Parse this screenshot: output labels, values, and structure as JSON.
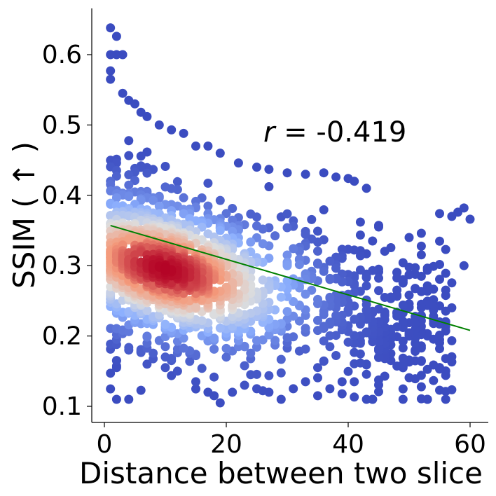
{
  "chart_data": {
    "type": "scatter",
    "xlabel": "Distance between two slice",
    "ylabel": "SSIM ( ↑ )",
    "annotation": {
      "symbol": "r",
      "text": " = -0.419",
      "r_value": -0.419
    },
    "xlim": [
      -2,
      63
    ],
    "ylim": [
      0.08,
      0.67
    ],
    "x_ticks": [
      0,
      20,
      40,
      60
    ],
    "x_tick_labels": [
      "0",
      "20",
      "40",
      "60"
    ],
    "y_ticks": [
      0.1,
      0.2,
      0.3,
      0.4,
      0.5,
      0.6
    ],
    "y_tick_labels": [
      "0.1",
      "0.2",
      "0.3",
      "0.4",
      "0.5",
      "0.6"
    ],
    "grid": false,
    "colormap": "coolwarm (point density)",
    "colors": {
      "low_density": "#3b4cc0",
      "mid_density": "#dddddd",
      "high_density": "#b40426",
      "fit_line": "#008000"
    },
    "fit_line": {
      "x": [
        1,
        60
      ],
      "y": [
        0.357,
        0.208
      ]
    },
    "cloud_summary": {
      "n_points_approx": 1500,
      "density_peak": {
        "x": 10,
        "y": 0.295
      },
      "sparse_outer_points": [
        [
          1,
          0.638
        ],
        [
          2,
          0.626
        ],
        [
          1,
          0.6
        ],
        [
          2,
          0.6
        ],
        [
          3,
          0.6
        ],
        [
          1,
          0.577
        ],
        [
          1,
          0.565
        ],
        [
          3,
          0.545
        ],
        [
          4,
          0.535
        ],
        [
          5,
          0.53
        ],
        [
          6,
          0.518
        ],
        [
          7,
          0.512
        ],
        [
          9,
          0.5
        ],
        [
          11,
          0.493
        ],
        [
          13,
          0.488
        ],
        [
          15,
          0.47
        ],
        [
          17,
          0.47
        ],
        [
          19,
          0.46
        ],
        [
          22,
          0.446
        ],
        [
          25,
          0.44
        ],
        [
          27,
          0.437
        ],
        [
          30,
          0.432
        ],
        [
          33,
          0.43
        ],
        [
          36,
          0.432
        ],
        [
          38,
          0.426
        ],
        [
          40,
          0.424
        ],
        [
          41,
          0.42
        ],
        [
          43,
          0.41
        ],
        [
          55,
          0.374
        ],
        [
          57,
          0.37
        ],
        [
          58,
          0.376
        ],
        [
          59,
          0.382
        ],
        [
          60,
          0.366
        ],
        [
          45,
          0.355
        ],
        [
          50,
          0.34
        ],
        [
          52,
          0.346
        ],
        [
          2,
          0.165
        ],
        [
          2,
          0.155
        ],
        [
          4,
          0.18
        ],
        [
          7,
          0.16
        ],
        [
          10,
          0.155
        ],
        [
          12,
          0.15
        ],
        [
          15,
          0.135
        ],
        [
          17,
          0.12
        ],
        [
          18,
          0.115
        ],
        [
          19,
          0.105
        ],
        [
          21,
          0.12
        ],
        [
          23,
          0.13
        ],
        [
          25,
          0.125
        ],
        [
          27,
          0.12
        ],
        [
          29,
          0.11
        ],
        [
          31,
          0.125
        ],
        [
          33,
          0.135
        ],
        [
          35,
          0.115
        ],
        [
          37,
          0.125
        ],
        [
          39,
          0.135
        ],
        [
          41,
          0.135
        ],
        [
          43,
          0.16
        ],
        [
          45,
          0.17
        ],
        [
          47,
          0.165
        ],
        [
          49,
          0.16
        ],
        [
          51,
          0.18
        ],
        [
          53,
          0.2
        ],
        [
          55,
          0.22
        ],
        [
          57,
          0.24
        ],
        [
          59,
          0.3
        ]
      ]
    }
  }
}
